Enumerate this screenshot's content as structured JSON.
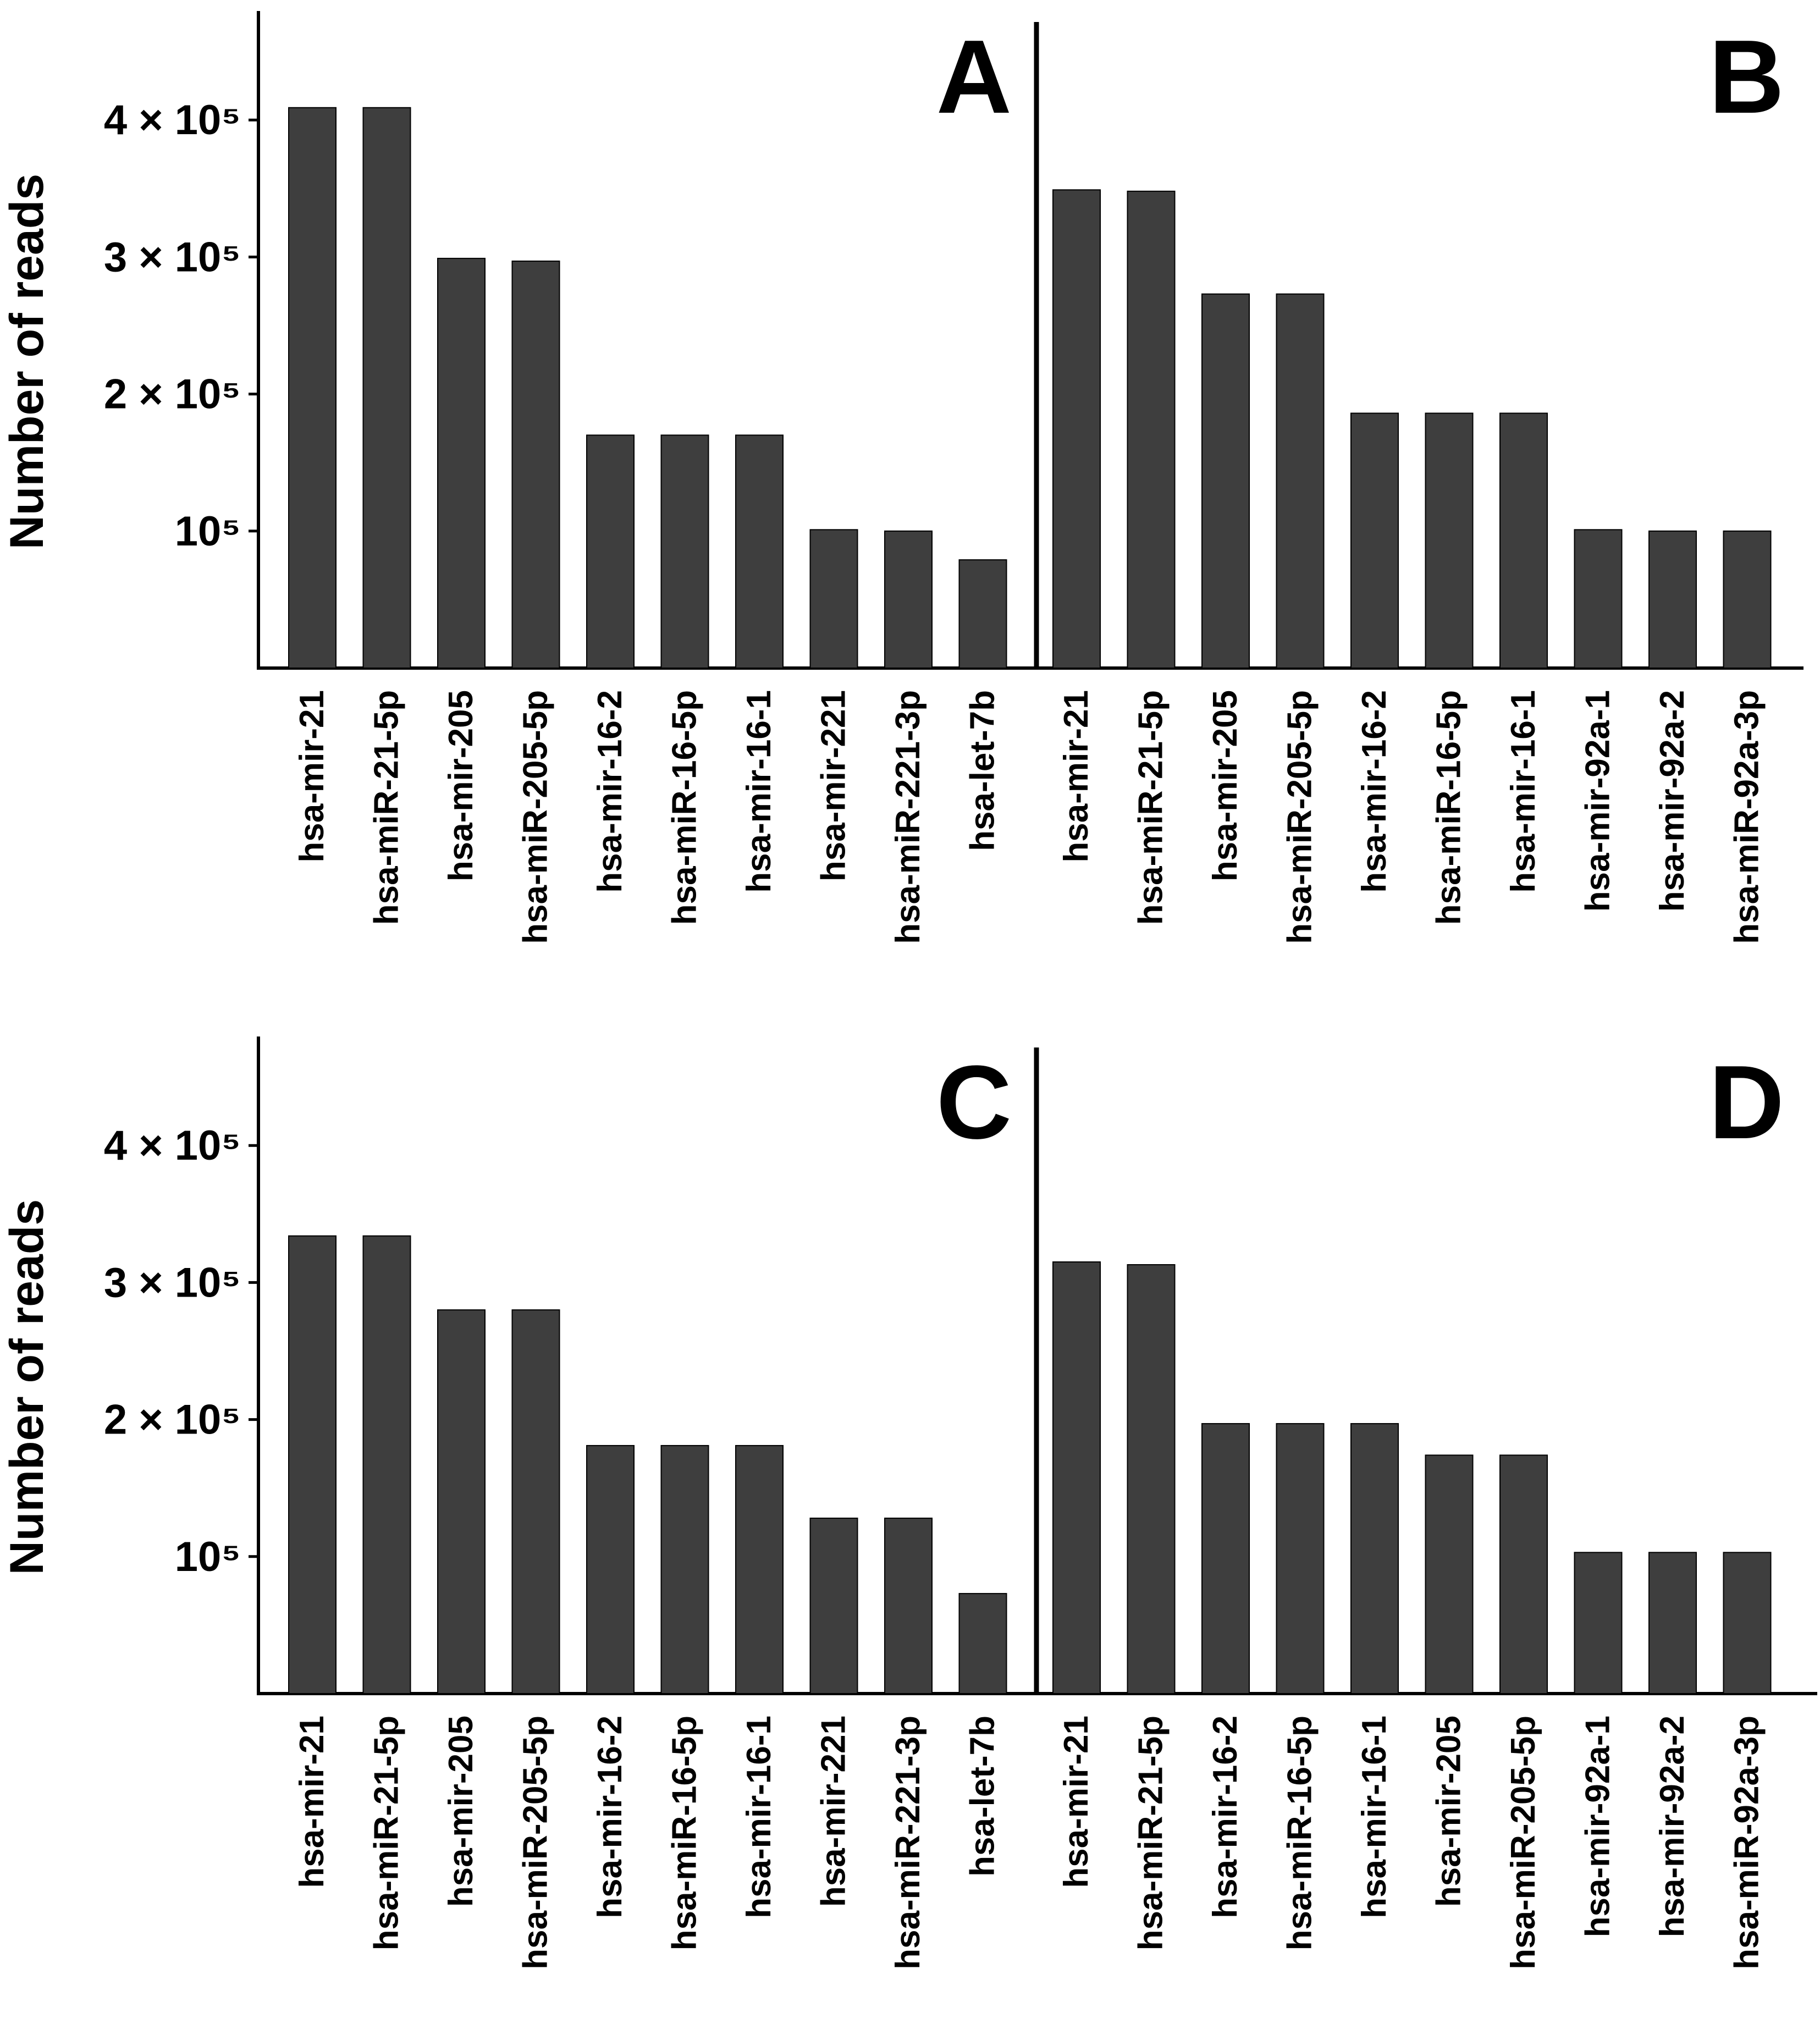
{
  "figure": {
    "y_axis_label": "Number of reads",
    "y_tick_labels": [
      {
        "value": 100000,
        "label": "10⁵"
      },
      {
        "value": 200000,
        "label": "2 × 10⁵"
      },
      {
        "value": 300000,
        "label": "3 × 10⁵"
      },
      {
        "value": 400000,
        "label": "4 × 10⁵"
      }
    ],
    "bar_color": "#3e3e3e",
    "axis_color": "#000000"
  },
  "chart_data": [
    {
      "type": "bar",
      "panel": "A",
      "ylabel": "Number of reads",
      "ylim": [
        0,
        480000
      ],
      "categories": [
        "hsa-mir-21",
        "hsa-miR-21-5p",
        "hsa-mir-205",
        "hsa-miR-205-5p",
        "hsa-mir-16-2",
        "hsa-miR-16-5p",
        "hsa-mir-16-1",
        "hsa-mir-221",
        "hsa-miR-221-3p",
        "hsa-let-7b"
      ],
      "values": [
        409000,
        409000,
        299000,
        297000,
        170000,
        170000,
        170000,
        101000,
        100000,
        79000
      ]
    },
    {
      "type": "bar",
      "panel": "B",
      "ylabel": "",
      "ylim": [
        0,
        480000
      ],
      "categories": [
        "hsa-mir-21",
        "hsa-miR-21-5p",
        "hsa-mir-205",
        "hsa-miR-205-5p",
        "hsa-mir-16-2",
        "hsa-miR-16-5p",
        "hsa-mir-16-1",
        "hsa-mir-92a-1",
        "hsa-mir-92a-2",
        "hsa-miR-92a-3p"
      ],
      "values": [
        349000,
        348000,
        273000,
        273000,
        186000,
        186000,
        186000,
        101000,
        100000,
        100000
      ]
    },
    {
      "type": "bar",
      "panel": "C",
      "ylabel": "Number of reads",
      "ylim": [
        0,
        480000
      ],
      "categories": [
        "hsa-mir-21",
        "hsa-miR-21-5p",
        "hsa-mir-205",
        "hsa-miR-205-5p",
        "hsa-mir-16-2",
        "hsa-miR-16-5p",
        "hsa-mir-16-1",
        "hsa-mir-221",
        "hsa-miR-221-3p",
        "hsa-let-7b"
      ],
      "values": [
        334000,
        334000,
        280000,
        280000,
        181000,
        181000,
        181000,
        128000,
        128000,
        73000
      ]
    },
    {
      "type": "bar",
      "panel": "D",
      "ylabel": "",
      "ylim": [
        0,
        480000
      ],
      "categories": [
        "hsa-mir-21",
        "hsa-miR-21-5p",
        "hsa-mir-16-2",
        "hsa-miR-16-5p",
        "hsa-mir-16-1",
        "hsa-mir-205",
        "hsa-miR-205-5p",
        "hsa-mir-92a-1",
        "hsa-mir-92a-2",
        "hsa-miR-92a-3p"
      ],
      "values": [
        315000,
        313000,
        197000,
        197000,
        197000,
        174000,
        174000,
        103000,
        103000,
        103000
      ]
    }
  ]
}
